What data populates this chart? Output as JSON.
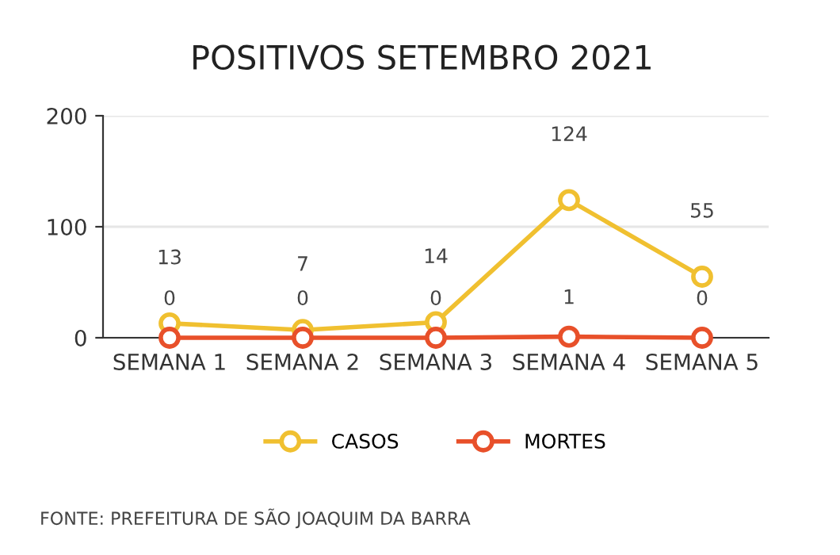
{
  "chart_data": {
    "type": "line",
    "title": "POSITIVOS SETEMBRO 2021",
    "categories": [
      "SEMANA 1",
      "SEMANA 2",
      "SEMANA 3",
      "SEMANA 4",
      "SEMANA 5"
    ],
    "series": [
      {
        "name": "CASOS",
        "color": "#f0c030",
        "values": [
          13,
          7,
          14,
          124,
          55
        ]
      },
      {
        "name": "MORTES",
        "color": "#e8502a",
        "values": [
          0,
          0,
          0,
          1,
          0
        ]
      }
    ],
    "ylim": [
      0,
      200
    ],
    "yticks": [
      0,
      100,
      200
    ],
    "grid": "y",
    "legend": "bottom",
    "marker": "circle",
    "data_labels": true,
    "annotations": [
      "FONTE: PREFEITURA DE SÃO JOAQUIM DA BARRA"
    ]
  }
}
